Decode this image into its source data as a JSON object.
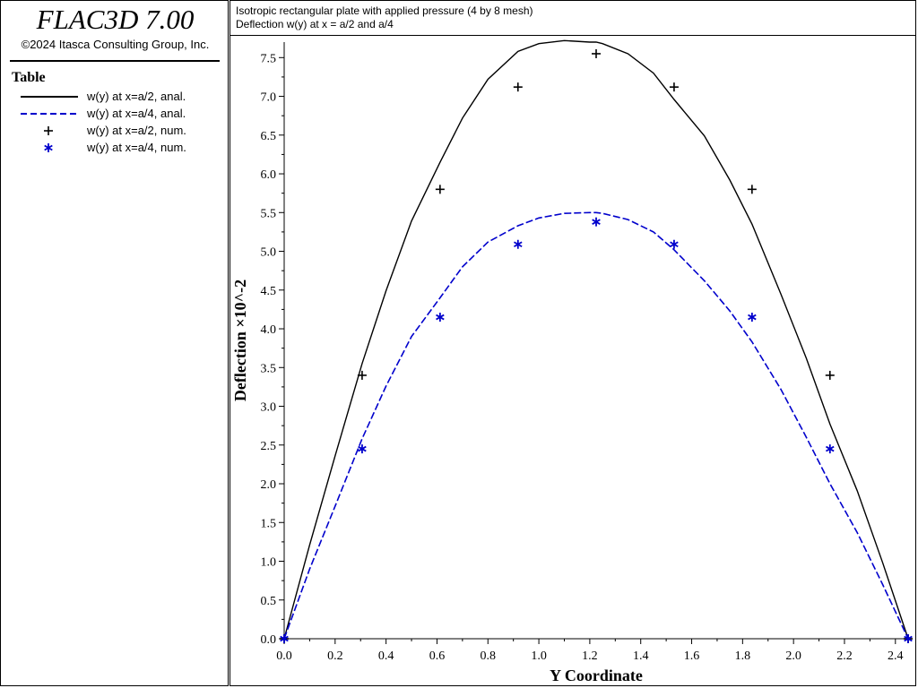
{
  "app": {
    "title": "FLAC3D 7.00",
    "copyright": "©2024 Itasca Consulting Group, Inc."
  },
  "legend": {
    "title": "Table",
    "items": [
      {
        "label": "w(y) at x=a/2, anal.",
        "color": "#000000",
        "style": "solid-line"
      },
      {
        "label": "w(y) at x=a/4, anal.",
        "color": "#0000cc",
        "style": "dashed-line"
      },
      {
        "label": "w(y) at x=a/2, num.",
        "color": "#000000",
        "style": "plus-marker"
      },
      {
        "label": "w(y) at x=a/4, num.",
        "color": "#0000cc",
        "style": "asterisk-marker"
      }
    ]
  },
  "chart_data": {
    "type": "line",
    "title": "Isotropic rectangular plate with applied pressure (4 by 8 mesh)",
    "subtitle": "Deflection w(y) at x = a/2 and a/4",
    "xlabel": "Y Coordinate",
    "ylabel": "Deflection ×10^-2",
    "xlim": [
      0,
      2.45
    ],
    "ylim": [
      0,
      7.7
    ],
    "x_ticks": [
      "0.0",
      "0.2",
      "0.4",
      "0.6",
      "0.8",
      "1.0",
      "1.2",
      "1.4",
      "1.6",
      "1.8",
      "2.0",
      "2.2",
      "2.4"
    ],
    "y_ticks": [
      "0.0",
      "0.5",
      "1.0",
      "1.5",
      "2.0",
      "2.5",
      "3.0",
      "3.5",
      "4.0",
      "4.5",
      "5.0",
      "5.5",
      "6.0",
      "6.5",
      "7.0",
      "7.5"
    ],
    "grid": false,
    "series": [
      {
        "kind": "line",
        "color": "#000000",
        "dash": "solid",
        "x": [
          0,
          0.1,
          0.2,
          0.306,
          0.4,
          0.5,
          0.612,
          0.7,
          0.8,
          0.918,
          1.0,
          1.1,
          1.2,
          1.225,
          1.25,
          1.35,
          1.45,
          1.531,
          1.65,
          1.75,
          1.837,
          1.95,
          2.05,
          2.143,
          2.25,
          2.35,
          2.45
        ],
        "y": [
          0,
          1.21,
          2.36,
          3.55,
          4.49,
          5.39,
          6.15,
          6.72,
          7.22,
          7.58,
          7.68,
          7.72,
          7.7,
          7.7,
          7.68,
          7.55,
          7.3,
          6.96,
          6.49,
          5.92,
          5.35,
          4.45,
          3.62,
          2.77,
          1.91,
          0.98,
          0
        ]
      },
      {
        "kind": "line",
        "color": "#0000cc",
        "dash": "dashed",
        "x": [
          0,
          0.1,
          0.2,
          0.306,
          0.4,
          0.5,
          0.612,
          0.7,
          0.8,
          0.918,
          1.0,
          1.1,
          1.2,
          1.225,
          1.25,
          1.35,
          1.45,
          1.531,
          1.65,
          1.75,
          1.837,
          1.95,
          2.05,
          2.143,
          2.25,
          2.35,
          2.45
        ],
        "y": [
          0,
          0.9,
          1.71,
          2.58,
          3.26,
          3.9,
          4.4,
          4.8,
          5.12,
          5.33,
          5.43,
          5.49,
          5.5,
          5.5,
          5.49,
          5.41,
          5.25,
          5.02,
          4.62,
          4.23,
          3.83,
          3.22,
          2.6,
          2.0,
          1.37,
          0.7,
          0
        ]
      },
      {
        "kind": "marker",
        "marker": "plus",
        "color": "#000000",
        "x": [
          0.0,
          0.306,
          0.612,
          0.918,
          1.225,
          1.531,
          1.837,
          2.143,
          2.45
        ],
        "y": [
          0.0,
          3.4,
          5.8,
          7.12,
          7.55,
          7.12,
          5.8,
          3.4,
          0.0
        ]
      },
      {
        "kind": "marker",
        "marker": "asterisk",
        "color": "#0000cc",
        "x": [
          0.0,
          0.306,
          0.612,
          0.918,
          1.225,
          1.531,
          1.837,
          2.143,
          2.45
        ],
        "y": [
          0.0,
          2.45,
          4.15,
          5.09,
          5.38,
          5.09,
          4.15,
          2.45,
          0.0
        ]
      }
    ]
  }
}
